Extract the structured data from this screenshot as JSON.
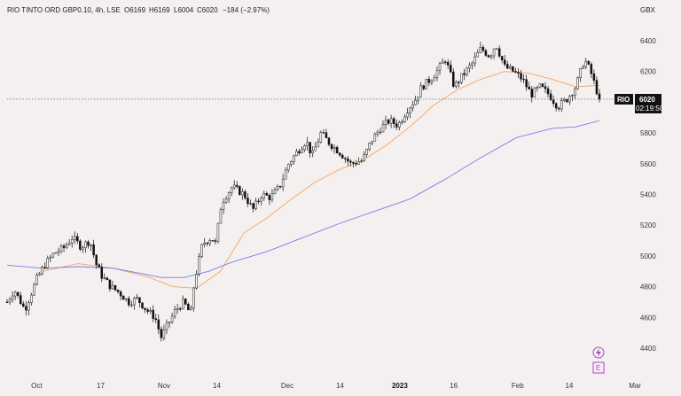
{
  "header": {
    "symbol_line": "RIO TINTO ORD GBP0.10, 4h, LSE",
    "open": "O6169",
    "high": "H6169",
    "low": "L6004",
    "close": "C6020",
    "change": "−184 (−2.97%)"
  },
  "currency": "GBX",
  "price_tag": {
    "ticker": "RIO",
    "price": "6020",
    "countdown": "02:19:50"
  },
  "icons": {
    "lightning": "lightning-icon",
    "e_badge": "E"
  },
  "chart_data": {
    "type": "candlestick",
    "title": "RIO TINTO ORD GBP0.10, 4h, LSE",
    "ylabel": "GBX",
    "ylim": [
      4250,
      6550
    ],
    "y_ticks": [
      4400,
      4600,
      4800,
      5000,
      5200,
      5400,
      5600,
      5800,
      6000,
      6200,
      6400
    ],
    "x_ticks": [
      {
        "label": "Oct",
        "bold": false,
        "pos": 0.05
      },
      {
        "label": "17",
        "bold": false,
        "pos": 0.158
      },
      {
        "label": "Nov",
        "bold": false,
        "pos": 0.265
      },
      {
        "label": "14",
        "bold": false,
        "pos": 0.354
      },
      {
        "label": "Dec",
        "bold": false,
        "pos": 0.473
      },
      {
        "label": "14",
        "bold": false,
        "pos": 0.562
      },
      {
        "label": "2023",
        "bold": true,
        "pos": 0.663
      },
      {
        "label": "16",
        "bold": false,
        "pos": 0.754
      },
      {
        "label": "Feb",
        "bold": false,
        "pos": 0.862
      },
      {
        "label": "14",
        "bold": false,
        "pos": 0.949
      },
      {
        "label": "Mar",
        "bold": false,
        "pos": 1.06
      }
    ],
    "last_price": 6020,
    "price_path": [
      [
        0,
        4700
      ],
      [
        0.012,
        4780
      ],
      [
        0.03,
        4650
      ],
      [
        0.05,
        4850
      ],
      [
        0.065,
        4950
      ],
      [
        0.08,
        5020
      ],
      [
        0.095,
        5050
      ],
      [
        0.11,
        5120
      ],
      [
        0.125,
        5060
      ],
      [
        0.14,
        5100
      ],
      [
        0.15,
        4950
      ],
      [
        0.16,
        4870
      ],
      [
        0.175,
        4800
      ],
      [
        0.19,
        4760
      ],
      [
        0.205,
        4700
      ],
      [
        0.22,
        4720
      ],
      [
        0.235,
        4650
      ],
      [
        0.25,
        4600
      ],
      [
        0.26,
        4470
      ],
      [
        0.272,
        4560
      ],
      [
        0.285,
        4650
      ],
      [
        0.298,
        4700
      ],
      [
        0.31,
        4620
      ],
      [
        0.316,
        4830
      ],
      [
        0.33,
        5080
      ],
      [
        0.345,
        5120
      ],
      [
        0.352,
        5080
      ],
      [
        0.362,
        5350
      ],
      [
        0.38,
        5450
      ],
      [
        0.4,
        5400
      ],
      [
        0.415,
        5300
      ],
      [
        0.43,
        5400
      ],
      [
        0.445,
        5380
      ],
      [
        0.46,
        5450
      ],
      [
        0.475,
        5600
      ],
      [
        0.49,
        5680
      ],
      [
        0.505,
        5750
      ],
      [
        0.515,
        5650
      ],
      [
        0.53,
        5800
      ],
      [
        0.545,
        5730
      ],
      [
        0.56,
        5680
      ],
      [
        0.58,
        5600
      ],
      [
        0.6,
        5620
      ],
      [
        0.615,
        5750
      ],
      [
        0.63,
        5830
      ],
      [
        0.645,
        5880
      ],
      [
        0.66,
        5850
      ],
      [
        0.675,
        5950
      ],
      [
        0.69,
        6020
      ],
      [
        0.7,
        6100
      ],
      [
        0.715,
        6150
      ],
      [
        0.725,
        6200
      ],
      [
        0.74,
        6280
      ],
      [
        0.755,
        6100
      ],
      [
        0.77,
        6180
      ],
      [
        0.785,
        6250
      ],
      [
        0.8,
        6350
      ],
      [
        0.815,
        6300
      ],
      [
        0.825,
        6380
      ],
      [
        0.84,
        6230
      ],
      [
        0.855,
        6200
      ],
      [
        0.87,
        6150
      ],
      [
        0.885,
        6050
      ],
      [
        0.9,
        6100
      ],
      [
        0.915,
        6050
      ],
      [
        0.93,
        5970
      ],
      [
        0.945,
        6020
      ],
      [
        0.96,
        6100
      ],
      [
        0.975,
        6280
      ],
      [
        0.985,
        6200
      ],
      [
        1.0,
        6020
      ]
    ],
    "moving_averages": [
      {
        "color": "#f4a460",
        "points": [
          [
            0.06,
            4900
          ],
          [
            0.12,
            4950
          ],
          [
            0.18,
            4920
          ],
          [
            0.24,
            4860
          ],
          [
            0.28,
            4800
          ],
          [
            0.32,
            4790
          ],
          [
            0.36,
            4900
          ],
          [
            0.4,
            5150
          ],
          [
            0.44,
            5250
          ],
          [
            0.48,
            5370
          ],
          [
            0.52,
            5480
          ],
          [
            0.56,
            5560
          ],
          [
            0.6,
            5620
          ],
          [
            0.64,
            5720
          ],
          [
            0.68,
            5840
          ],
          [
            0.72,
            5980
          ],
          [
            0.76,
            6080
          ],
          [
            0.8,
            6150
          ],
          [
            0.84,
            6200
          ],
          [
            0.88,
            6190
          ],
          [
            0.92,
            6150
          ],
          [
            0.96,
            6100
          ],
          [
            1.0,
            6110
          ]
        ]
      },
      {
        "color": "#7b7bea",
        "points": [
          [
            0.0,
            4940
          ],
          [
            0.06,
            4920
          ],
          [
            0.12,
            4930
          ],
          [
            0.18,
            4920
          ],
          [
            0.22,
            4890
          ],
          [
            0.26,
            4860
          ],
          [
            0.3,
            4860
          ],
          [
            0.34,
            4900
          ],
          [
            0.38,
            4960
          ],
          [
            0.44,
            5030
          ],
          [
            0.5,
            5120
          ],
          [
            0.56,
            5210
          ],
          [
            0.62,
            5290
          ],
          [
            0.68,
            5370
          ],
          [
            0.74,
            5500
          ],
          [
            0.8,
            5640
          ],
          [
            0.86,
            5770
          ],
          [
            0.92,
            5830
          ],
          [
            0.96,
            5840
          ],
          [
            1.0,
            5880
          ]
        ]
      }
    ],
    "grid": false,
    "legend": "none"
  }
}
